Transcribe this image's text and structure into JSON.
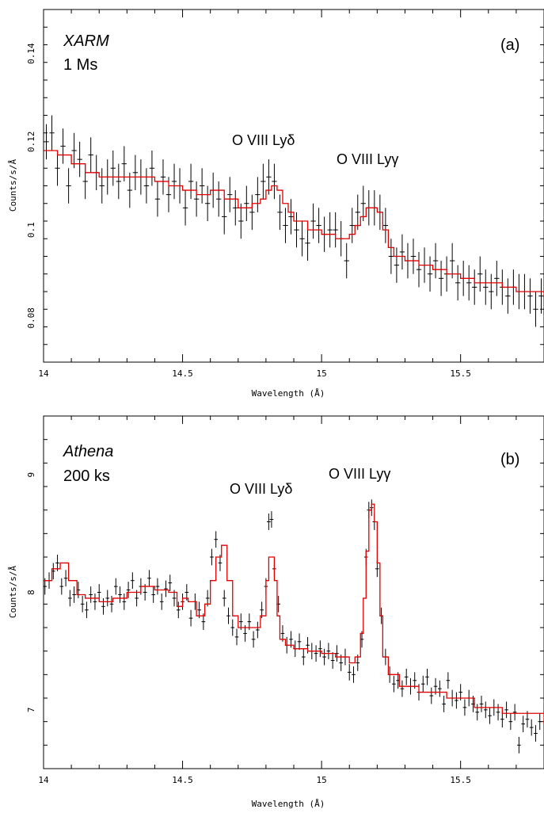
{
  "chart_data": [
    {
      "type": "line",
      "panel_label": "(a)",
      "instrument": "XARM",
      "exposure": "1 Ms",
      "xlabel": "Wavelength (Å)",
      "ylabel": "Counts/s/Å",
      "xlim": [
        14.0,
        15.8
      ],
      "ylim": [
        0.07,
        0.15
      ],
      "x_ticks": [
        14,
        14.5,
        15,
        15.5
      ],
      "x_tick_labels": [
        "14",
        "14.5",
        "15",
        "15.5"
      ],
      "y_ticks": [
        0.08,
        0.1,
        0.12,
        0.14
      ],
      "y_tick_labels": [
        "0.08",
        "0.1",
        "0.12",
        "0.14"
      ],
      "annotations": [
        {
          "text": "O VIII Lyδ",
          "x": 14.82,
          "y": 0.12
        },
        {
          "text": "O VIII Lyγ",
          "x": 15.17,
          "y": 0.116
        }
      ],
      "series": [
        {
          "role": "model",
          "color": "#e00000",
          "style": "step",
          "x": [
            14.0,
            14.05,
            14.1,
            14.15,
            14.2,
            14.25,
            14.3,
            14.35,
            14.4,
            14.45,
            14.5,
            14.55,
            14.6,
            14.65,
            14.7,
            14.72,
            14.75,
            14.78,
            14.8,
            14.82,
            14.84,
            14.86,
            14.88,
            14.9,
            14.95,
            15.0,
            15.05,
            15.08,
            15.1,
            15.12,
            15.14,
            15.16,
            15.18,
            15.2,
            15.22,
            15.24,
            15.26,
            15.3,
            15.35,
            15.4,
            15.45,
            15.5,
            15.55,
            15.6,
            15.65,
            15.7,
            15.75,
            15.8
          ],
          "y": [
            0.118,
            0.117,
            0.115,
            0.113,
            0.112,
            0.112,
            0.112,
            0.112,
            0.111,
            0.11,
            0.109,
            0.108,
            0.109,
            0.107,
            0.105,
            0.105,
            0.106,
            0.107,
            0.109,
            0.11,
            0.109,
            0.106,
            0.104,
            0.102,
            0.1,
            0.099,
            0.098,
            0.098,
            0.099,
            0.101,
            0.103,
            0.105,
            0.105,
            0.104,
            0.1,
            0.096,
            0.094,
            0.093,
            0.092,
            0.091,
            0.09,
            0.089,
            0.088,
            0.088,
            0.087,
            0.086,
            0.086,
            0.085
          ]
        },
        {
          "role": "data",
          "color": "#000000",
          "style": "errorbar",
          "yerr": 0.004,
          "x": [
            14.01,
            14.03,
            14.05,
            14.07,
            14.09,
            14.11,
            14.13,
            14.15,
            14.17,
            14.19,
            14.21,
            14.23,
            14.25,
            14.27,
            14.29,
            14.31,
            14.33,
            14.35,
            14.37,
            14.39,
            14.41,
            14.43,
            14.45,
            14.47,
            14.49,
            14.51,
            14.53,
            14.55,
            14.57,
            14.59,
            14.61,
            14.63,
            14.65,
            14.67,
            14.69,
            14.71,
            14.73,
            14.75,
            14.77,
            14.79,
            14.81,
            14.83,
            14.85,
            14.87,
            14.89,
            14.91,
            14.93,
            14.95,
            14.97,
            14.99,
            15.01,
            15.03,
            15.05,
            15.07,
            15.09,
            15.11,
            15.13,
            15.15,
            15.17,
            15.19,
            15.21,
            15.23,
            15.25,
            15.27,
            15.29,
            15.31,
            15.33,
            15.35,
            15.37,
            15.39,
            15.41,
            15.43,
            15.45,
            15.47,
            15.49,
            15.51,
            15.53,
            15.55,
            15.57,
            15.59,
            15.61,
            15.63,
            15.65,
            15.67,
            15.69,
            15.71,
            15.73,
            15.75,
            15.77,
            15.79
          ],
          "y": [
            0.12,
            0.122,
            0.114,
            0.119,
            0.11,
            0.118,
            0.116,
            0.111,
            0.117,
            0.113,
            0.11,
            0.112,
            0.114,
            0.111,
            0.115,
            0.109,
            0.113,
            0.112,
            0.11,
            0.114,
            0.107,
            0.112,
            0.108,
            0.111,
            0.11,
            0.105,
            0.111,
            0.107,
            0.11,
            0.106,
            0.109,
            0.107,
            0.103,
            0.108,
            0.105,
            0.102,
            0.106,
            0.104,
            0.108,
            0.111,
            0.112,
            0.111,
            0.104,
            0.101,
            0.103,
            0.1,
            0.098,
            0.097,
            0.102,
            0.101,
            0.099,
            0.1,
            0.1,
            0.098,
            0.093,
            0.101,
            0.104,
            0.106,
            0.105,
            0.105,
            0.104,
            0.101,
            0.094,
            0.092,
            0.095,
            0.093,
            0.094,
            0.091,
            0.092,
            0.09,
            0.093,
            0.089,
            0.09,
            0.093,
            0.088,
            0.089,
            0.088,
            0.087,
            0.09,
            0.087,
            0.086,
            0.089,
            0.087,
            0.085,
            0.087,
            0.086,
            0.086,
            0.085,
            0.082,
            0.085
          ]
        }
      ]
    },
    {
      "type": "line",
      "panel_label": "(b)",
      "instrument": "Athena",
      "exposure": "200 ks",
      "xlabel": "Wavelength (Å)",
      "ylabel": "Counts/s/Å",
      "xlim": [
        14.0,
        15.8
      ],
      "ylim": [
        6.5,
        9.5
      ],
      "x_ticks": [
        14,
        14.5,
        15,
        15.5
      ],
      "x_tick_labels": [
        "14",
        "14.5",
        "15",
        "15.5"
      ],
      "y_ticks": [
        7,
        8,
        9
      ],
      "y_tick_labels": [
        "7",
        "8",
        "9"
      ],
      "annotations": [
        {
          "text": "O VIII Lyδ",
          "x": 14.82,
          "y": 8.75
        },
        {
          "text": "O VIII Lyγ",
          "x": 15.16,
          "y": 8.95
        }
      ],
      "series": [
        {
          "role": "model",
          "color": "#e00000",
          "style": "step",
          "x": [
            14.0,
            14.03,
            14.06,
            14.09,
            14.12,
            14.15,
            14.2,
            14.25,
            14.3,
            14.35,
            14.4,
            14.45,
            14.48,
            14.5,
            14.52,
            14.55,
            14.58,
            14.6,
            14.62,
            14.64,
            14.66,
            14.68,
            14.7,
            14.73,
            14.76,
            14.78,
            14.8,
            14.81,
            14.82,
            14.83,
            14.84,
            14.85,
            14.87,
            14.9,
            14.95,
            15.0,
            15.05,
            15.1,
            15.12,
            15.14,
            15.15,
            15.16,
            15.17,
            15.18,
            15.19,
            15.2,
            15.21,
            15.22,
            15.24,
            15.28,
            15.35,
            15.45,
            15.55,
            15.65,
            15.8
          ],
          "y": [
            8.1,
            8.2,
            8.25,
            8.1,
            7.98,
            7.95,
            7.92,
            7.95,
            8.0,
            8.05,
            8.02,
            8.0,
            7.88,
            7.95,
            7.92,
            7.8,
            7.9,
            8.1,
            8.3,
            8.4,
            8.1,
            7.8,
            7.7,
            7.7,
            7.7,
            7.8,
            8.1,
            8.3,
            8.3,
            8.1,
            7.8,
            7.6,
            7.55,
            7.52,
            7.5,
            7.48,
            7.45,
            7.4,
            7.45,
            7.65,
            7.95,
            8.35,
            8.7,
            8.75,
            8.6,
            8.25,
            7.8,
            7.45,
            7.3,
            7.2,
            7.15,
            7.1,
            7.02,
            6.97,
            6.88
          ]
        },
        {
          "role": "data",
          "color": "#000000",
          "style": "errorbar",
          "yerr": 0.07,
          "x": [
            14.005,
            14.02,
            14.035,
            14.05,
            14.065,
            14.08,
            14.095,
            14.11,
            14.125,
            14.14,
            14.155,
            14.17,
            14.185,
            14.2,
            14.215,
            14.23,
            14.245,
            14.26,
            14.275,
            14.29,
            14.305,
            14.32,
            14.335,
            14.35,
            14.365,
            14.38,
            14.395,
            14.41,
            14.425,
            14.44,
            14.455,
            14.47,
            14.485,
            14.5,
            14.515,
            14.53,
            14.545,
            14.56,
            14.575,
            14.59,
            14.605,
            14.62,
            14.635,
            14.65,
            14.665,
            14.68,
            14.695,
            14.71,
            14.725,
            14.74,
            14.755,
            14.77,
            14.785,
            14.8,
            14.81,
            14.82,
            14.83,
            14.845,
            14.86,
            14.875,
            14.89,
            14.905,
            14.92,
            14.935,
            14.95,
            14.965,
            14.98,
            14.995,
            15.01,
            15.025,
            15.04,
            15.055,
            15.07,
            15.085,
            15.1,
            15.115,
            15.13,
            15.145,
            15.16,
            15.17,
            15.18,
            15.19,
            15.2,
            15.215,
            15.23,
            15.245,
            15.26,
            15.275,
            15.29,
            15.305,
            15.32,
            15.335,
            15.35,
            15.365,
            15.38,
            15.395,
            15.41,
            15.425,
            15.44,
            15.455,
            15.47,
            15.485,
            15.5,
            15.515,
            15.53,
            15.545,
            15.56,
            15.575,
            15.59,
            15.605,
            15.62,
            15.635,
            15.65,
            15.665,
            15.68,
            15.695,
            15.71,
            15.725,
            15.74,
            15.755,
            15.77,
            15.785
          ],
          "y": [
            8.05,
            8.1,
            8.18,
            8.25,
            8.05,
            8.12,
            7.95,
            7.98,
            8.02,
            7.9,
            7.85,
            7.98,
            7.92,
            8.0,
            7.88,
            7.95,
            7.9,
            8.05,
            7.98,
            7.92,
            8.02,
            8.1,
            7.95,
            8.05,
            8.0,
            8.12,
            7.98,
            8.05,
            7.92,
            8.03,
            8.08,
            7.95,
            7.85,
            7.92,
            8.0,
            7.78,
            7.92,
            7.85,
            7.75,
            7.95,
            8.3,
            8.45,
            8.25,
            7.95,
            7.8,
            7.7,
            7.62,
            7.75,
            7.65,
            7.75,
            7.6,
            7.68,
            7.85,
            8.05,
            8.6,
            8.62,
            8.2,
            7.9,
            7.65,
            7.55,
            7.6,
            7.52,
            7.58,
            7.45,
            7.55,
            7.5,
            7.48,
            7.52,
            7.45,
            7.5,
            7.42,
            7.48,
            7.4,
            7.45,
            7.32,
            7.3,
            7.4,
            7.6,
            8.3,
            8.7,
            8.72,
            8.6,
            8.2,
            7.8,
            7.45,
            7.3,
            7.22,
            7.25,
            7.18,
            7.28,
            7.2,
            7.25,
            7.15,
            7.22,
            7.28,
            7.12,
            7.2,
            7.18,
            7.05,
            7.25,
            7.1,
            7.08,
            7.15,
            7.02,
            7.1,
            7.05,
            6.98,
            7.05,
            7.0,
            6.95,
            7.02,
            6.98,
            6.92,
            7.0,
            6.9,
            6.98,
            6.7,
            6.88,
            6.92,
            6.85,
            6.8,
            6.9
          ]
        }
      ]
    }
  ]
}
